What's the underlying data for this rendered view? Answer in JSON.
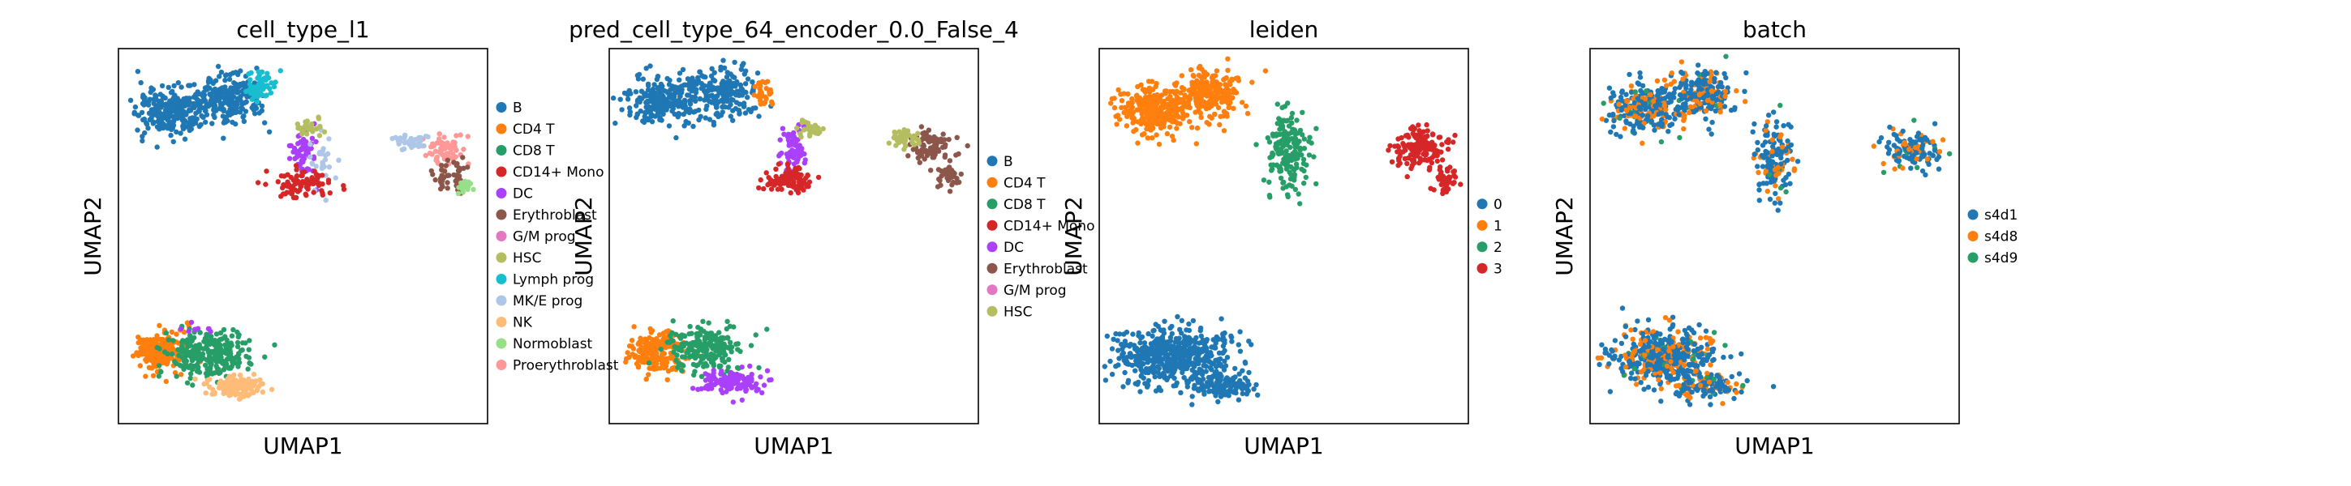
{
  "chart_data": [
    {
      "type": "scatter",
      "title": "cell_type_l1",
      "xlabel": "UMAP1",
      "ylabel": "UMAP2",
      "legend": "right-outside",
      "series": [
        {
          "name": "B",
          "color": "#1f77b4"
        },
        {
          "name": "CD4 T",
          "color": "#ff7f0e"
        },
        {
          "name": "CD8 T",
          "color": "#279e68"
        },
        {
          "name": "CD14+ Mono",
          "color": "#d62728"
        },
        {
          "name": "DC",
          "color": "#aa40fc"
        },
        {
          "name": "Erythroblast",
          "color": "#8c564b"
        },
        {
          "name": "G/M prog",
          "color": "#e377c2"
        },
        {
          "name": "HSC",
          "color": "#b5bd61"
        },
        {
          "name": "Lymph prog",
          "color": "#17becf"
        },
        {
          "name": "MK/E prog",
          "color": "#aec7e8"
        },
        {
          "name": "NK",
          "color": "#ffbb78"
        },
        {
          "name": "Normoblast",
          "color": "#98df8a"
        },
        {
          "name": "Proerythroblast",
          "color": "#ff9896"
        }
      ]
    },
    {
      "type": "scatter",
      "title": "pred_cell_type_64_encoder_0.0_False_4",
      "xlabel": "UMAP1",
      "ylabel": "UMAP2",
      "legend": "right-outside",
      "series": [
        {
          "name": "B",
          "color": "#1f77b4"
        },
        {
          "name": "CD4 T",
          "color": "#ff7f0e"
        },
        {
          "name": "CD8 T",
          "color": "#279e68"
        },
        {
          "name": "CD14+ Mono",
          "color": "#d62728"
        },
        {
          "name": "DC",
          "color": "#aa40fc"
        },
        {
          "name": "Erythroblast",
          "color": "#8c564b"
        },
        {
          "name": "G/M prog",
          "color": "#e377c2"
        },
        {
          "name": "HSC",
          "color": "#b5bd61"
        }
      ]
    },
    {
      "type": "scatter",
      "title": "leiden",
      "xlabel": "UMAP1",
      "ylabel": "UMAP2",
      "legend": "right-outside",
      "series": [
        {
          "name": "0",
          "color": "#1f77b4"
        },
        {
          "name": "1",
          "color": "#ff7f0e"
        },
        {
          "name": "2",
          "color": "#279e68"
        },
        {
          "name": "3",
          "color": "#d62728"
        }
      ]
    },
    {
      "type": "scatter",
      "title": "batch",
      "xlabel": "UMAP1",
      "ylabel": "UMAP2",
      "legend": "right-outside",
      "series": [
        {
          "name": "s4d1",
          "color": "#1f77b4"
        },
        {
          "name": "s4d8",
          "color": "#ff7f0e"
        },
        {
          "name": "s4d9",
          "color": "#279e68"
        }
      ]
    }
  ]
}
